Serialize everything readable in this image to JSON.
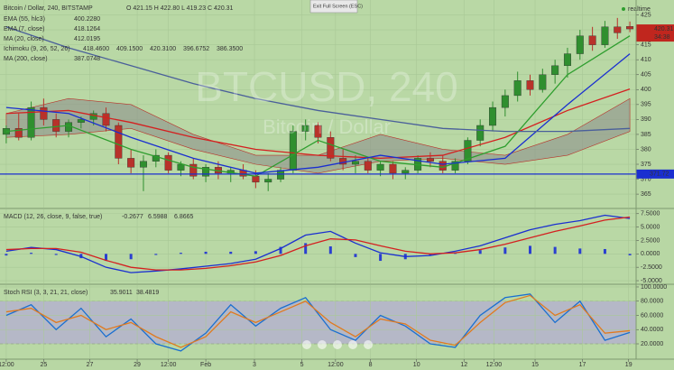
{
  "chart_data": [
    {
      "type": "candlestick",
      "title": "Bitcoin / Dollar, 240, BITSTAMP",
      "ohlc_readout": "O 421.15 H 422.80 L 419.23 C 420.31",
      "watermark": [
        "BTCUSD, 240",
        "Bitcoin / Dollar"
      ],
      "tooltip": "Exit Full Screen (ESC)",
      "status": "realtime",
      "countdown": "34:38",
      "last_price": 420.31,
      "hline": 371.72,
      "up_color": "#2f8f2f",
      "down_color": "#b8322a",
      "xlim": [
        -0.5,
        50.5
      ],
      "ylim": [
        360.5,
        430
      ],
      "yticks": [
        365,
        370,
        375,
        380,
        385,
        390,
        395,
        400,
        405,
        410,
        415,
        420,
        425
      ],
      "open": [
        385,
        387,
        384,
        394,
        390,
        386,
        389,
        390,
        392,
        388,
        377,
        374,
        376,
        378,
        373,
        375,
        371,
        374,
        372,
        373,
        371,
        369,
        370,
        373,
        386,
        388,
        384,
        377,
        375,
        376,
        373,
        375,
        372,
        373,
        377,
        376,
        373,
        376,
        383,
        388,
        394,
        398,
        403,
        400,
        405,
        408,
        412,
        418,
        415,
        421,
        421.15
      ],
      "high": [
        388,
        392,
        396,
        397,
        392,
        390,
        391,
        393,
        394,
        389,
        380,
        378,
        380,
        379,
        376,
        377,
        375,
        376,
        374,
        375,
        373,
        372,
        374,
        388,
        390,
        389,
        386,
        380,
        378,
        377,
        376,
        376,
        374,
        378,
        379,
        378,
        377,
        384,
        390,
        396,
        400,
        406,
        405,
        407,
        410,
        414,
        420,
        421,
        423,
        424,
        422.8
      ],
      "low": [
        382,
        383,
        383,
        388,
        384,
        384,
        387,
        388,
        386,
        375,
        372,
        366,
        374,
        372,
        371,
        370,
        369,
        370,
        369,
        370,
        367,
        366,
        369,
        372,
        383,
        382,
        376,
        373,
        372,
        372,
        371,
        370,
        370,
        372,
        374,
        372,
        372,
        375,
        381,
        386,
        391,
        396,
        398,
        399,
        402,
        404,
        410,
        413,
        414,
        417,
        419.23
      ],
      "close": [
        387,
        384,
        394,
        390,
        386,
        389,
        390,
        392,
        388,
        377,
        374,
        376,
        378,
        373,
        375,
        371,
        374,
        372,
        373,
        371,
        369,
        370,
        373,
        386,
        388,
        384,
        377,
        375,
        376,
        373,
        375,
        372,
        373,
        377,
        376,
        373,
        376,
        383,
        388,
        394,
        398,
        403,
        400,
        405,
        408,
        412,
        418,
        415,
        421,
        419,
        420.31
      ],
      "series": [
        {
          "name": "EMA (55, hlc3)",
          "type": "line",
          "color": "#d42020",
          "readouts": [
            "400.2280"
          ],
          "readout_colors": [
            "#d42020"
          ],
          "x": [
            0,
            5,
            10,
            15,
            20,
            25,
            30,
            35,
            40,
            45,
            50
          ],
          "values": [
            392,
            393,
            389,
            384,
            380,
            378,
            377,
            378,
            384,
            393,
            400.2
          ]
        },
        {
          "name": "EMA (7, close)",
          "type": "line",
          "color": "#2e9e2e",
          "readouts": [
            "418.1264"
          ],
          "readout_colors": [
            "#2e8b2e"
          ],
          "x": [
            0,
            5,
            10,
            15,
            20,
            25,
            30,
            35,
            40,
            45,
            50
          ],
          "values": [
            386,
            388,
            380,
            374,
            371,
            383,
            376,
            374,
            381,
            405,
            418
          ]
        },
        {
          "name": "MA (20, close)",
          "type": "line",
          "color": "#1a2fd0",
          "readouts": [
            "412.0195"
          ],
          "readout_colors": [
            "#1a2fd0"
          ],
          "x": [
            0,
            5,
            10,
            15,
            20,
            25,
            30,
            35,
            40,
            45,
            50
          ],
          "values": [
            394,
            392,
            384,
            377,
            372,
            374,
            378,
            375,
            377,
            395,
            412
          ]
        },
        {
          "name": "Ichimoku (9, 26, 52, 26)",
          "type": "cloud",
          "color": "#8a8a8a",
          "readouts": [
            "418.4600",
            "409.1500",
            "420.3100",
            "396.6752",
            "386.3500"
          ],
          "readout_colors": [
            "#1a9fd0",
            "#b8322a",
            "#2e8b2e",
            "#d07a10",
            "#b8322a"
          ],
          "x": [
            0,
            5,
            10,
            15,
            20,
            25,
            30,
            35,
            40,
            45,
            50
          ],
          "upper": [
            392,
            397,
            395,
            385,
            378,
            378,
            385,
            380,
            378,
            385,
            397
          ],
          "lower": [
            384,
            385,
            387,
            380,
            375,
            372,
            376,
            377,
            375,
            378,
            386
          ]
        },
        {
          "name": "MA (200, close)",
          "type": "line",
          "color": "#4a5f9a",
          "readouts": [
            "387.0748"
          ],
          "readout_colors": [
            "#1a2fd0"
          ],
          "x": [
            0,
            5,
            10,
            15,
            20,
            25,
            30,
            35,
            40,
            45,
            50
          ],
          "values": [
            421,
            414,
            408,
            402,
            397,
            393,
            390,
            387,
            386,
            386,
            387
          ]
        }
      ]
    },
    {
      "type": "line",
      "title": "MACD (12, 26, close, 9, false, true)",
      "readouts": [
        "-0.2677",
        "6.5988",
        "6.8665"
      ],
      "readout_colors": [
        "#1a2fd0",
        "#1a2fd0",
        "#b8322a"
      ],
      "xlim": [
        -0.5,
        50.5
      ],
      "ylim": [
        -5.5,
        8.3
      ],
      "yticks": [
        {
          "value": 7.5,
          "label": "7.5000"
        },
        {
          "value": 5,
          "label": "5.0000"
        },
        {
          "value": 2.5,
          "label": "2.5000"
        },
        {
          "value": 0,
          "label": "0.0000"
        },
        {
          "value": -2.5,
          "label": "-2.5000"
        },
        {
          "value": -5,
          "label": "-5.0000"
        }
      ],
      "series": [
        {
          "type": "histogram",
          "color": "#2a3fd0",
          "x": [
            0,
            2,
            4,
            6,
            8,
            10,
            12,
            14,
            16,
            18,
            20,
            22,
            24,
            26,
            28,
            30,
            32,
            34,
            36,
            38,
            40,
            42,
            44,
            46,
            48,
            50
          ],
          "values": [
            -0.3,
            0.2,
            -0.2,
            -0.8,
            -1.3,
            -1,
            -0.2,
            0.2,
            0.4,
            0.4,
            0.5,
            1.3,
            2,
            1.4,
            -0.6,
            -1.3,
            -1,
            -0.3,
            0.3,
            0.7,
            1.2,
            1.5,
            1.3,
            1,
            0.9,
            -0.27
          ]
        },
        {
          "type": "line",
          "color": "#1a2fd0",
          "x": [
            0,
            2,
            4,
            6,
            8,
            10,
            12,
            14,
            16,
            18,
            20,
            22,
            24,
            26,
            28,
            30,
            32,
            34,
            36,
            38,
            40,
            42,
            44,
            46,
            48,
            50
          ],
          "values": [
            0.5,
            1.2,
            0.8,
            -0.5,
            -2.5,
            -3.5,
            -3.2,
            -2.8,
            -2.3,
            -1.8,
            -1,
            1,
            3.5,
            4.2,
            2,
            0.2,
            -0.5,
            -0.3,
            0.5,
            1.5,
            3,
            4.5,
            5.5,
            6.2,
            7.2,
            6.6
          ]
        },
        {
          "type": "line",
          "color": "#d42020",
          "x": [
            0,
            2,
            4,
            6,
            8,
            10,
            12,
            14,
            16,
            18,
            20,
            22,
            24,
            26,
            28,
            30,
            32,
            34,
            36,
            38,
            40,
            42,
            44,
            46,
            48,
            50
          ],
          "values": [
            0.8,
            1,
            1,
            0.3,
            -1.2,
            -2.5,
            -3,
            -3,
            -2.7,
            -2.2,
            -1.5,
            -0.3,
            1.5,
            2.8,
            2.6,
            1.5,
            0.5,
            0,
            0.2,
            0.8,
            1.8,
            3,
            4.2,
            5.2,
            6.3,
            6.87
          ]
        }
      ]
    },
    {
      "type": "line",
      "title": "Stoch RSI (3, 3, 21, 21, close)",
      "readouts": [
        "35.9011",
        "38.4819"
      ],
      "readout_colors": [
        "#1a8fd0",
        "#d07a10"
      ],
      "band": [
        20,
        80
      ],
      "band_color": "#b4b3cc",
      "xlim": [
        -0.5,
        50.5
      ],
      "ylim": [
        -0.3,
        102.5
      ],
      "yticks": [
        {
          "value": 100,
          "label": "100.0000"
        },
        {
          "value": 80,
          "label": "80.0000"
        },
        {
          "value": 60,
          "label": "60.0000"
        },
        {
          "value": 40,
          "label": "40.0000"
        },
        {
          "value": 20,
          "label": "20.0000"
        }
      ],
      "xticks": [
        {
          "value": 0,
          "label": "12:00"
        },
        {
          "value": 3,
          "label": "25"
        },
        {
          "value": 6.7,
          "label": "27"
        },
        {
          "value": 10.5,
          "label": "29"
        },
        {
          "value": 13,
          "label": "12:00"
        },
        {
          "value": 16,
          "label": "Feb"
        },
        {
          "value": 19.9,
          "label": "3"
        },
        {
          "value": 23.7,
          "label": "5"
        },
        {
          "value": 26.4,
          "label": "12:00"
        },
        {
          "value": 29.2,
          "label": "8"
        },
        {
          "value": 32.9,
          "label": "10"
        },
        {
          "value": 36.7,
          "label": "12"
        },
        {
          "value": 39.1,
          "label": "12:00"
        },
        {
          "value": 42.4,
          "label": "15"
        },
        {
          "value": 46.2,
          "label": "17"
        },
        {
          "value": 49.9,
          "label": "19"
        }
      ],
      "series": [
        {
          "type": "line",
          "color": "#1a6fd0",
          "x": [
            0,
            2,
            4,
            6,
            8,
            10,
            12,
            14,
            16,
            18,
            20,
            22,
            24,
            26,
            28,
            30,
            32,
            34,
            36,
            38,
            40,
            42,
            44,
            46,
            48,
            50
          ],
          "values": [
            60,
            75,
            40,
            70,
            30,
            55,
            20,
            10,
            35,
            75,
            45,
            70,
            85,
            40,
            25,
            60,
            45,
            20,
            15,
            60,
            85,
            90,
            50,
            80,
            25,
            36
          ]
        },
        {
          "type": "line",
          "color": "#e07a20",
          "x": [
            0,
            2,
            4,
            6,
            8,
            10,
            12,
            14,
            16,
            18,
            20,
            22,
            24,
            26,
            28,
            30,
            32,
            34,
            36,
            38,
            40,
            42,
            44,
            46,
            48,
            50
          ],
          "values": [
            65,
            70,
            50,
            60,
            40,
            50,
            30,
            15,
            30,
            65,
            50,
            65,
            80,
            50,
            30,
            55,
            48,
            25,
            18,
            50,
            78,
            88,
            60,
            75,
            35,
            38.5
          ]
        }
      ]
    }
  ]
}
